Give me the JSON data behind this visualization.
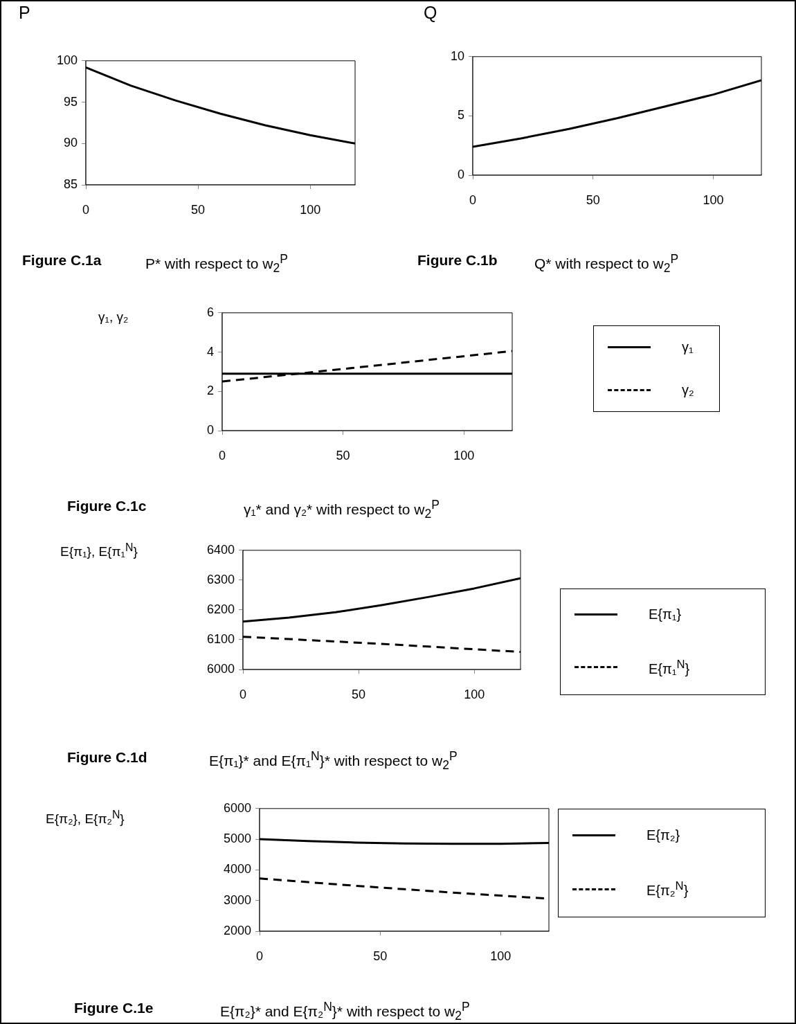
{
  "chart_data": [
    {
      "type": "line",
      "title": "Figure C.1a",
      "subtitle": "P* with respect to w$_{2}$$^{P}$",
      "ylabel": "P",
      "x": [
        0,
        20,
        40,
        60,
        80,
        100,
        120
      ],
      "xlim": [
        0,
        120
      ],
      "xticks": [
        0,
        50,
        100
      ],
      "ylim": [
        85,
        100
      ],
      "yticks": [
        85,
        90,
        95,
        100
      ],
      "series": [
        {
          "color": "#000000",
          "line_style": "solid",
          "values": [
            99.2,
            97.0,
            95.2,
            93.6,
            92.2,
            91.0,
            90.0
          ]
        }
      ]
    },
    {
      "type": "line",
      "title": "Figure C.1b",
      "subtitle": "Q* with respect to w$_{2}$$^{P}$",
      "ylabel": "Q",
      "x": [
        0,
        20,
        40,
        60,
        80,
        100,
        120
      ],
      "xlim": [
        0,
        120
      ],
      "xticks": [
        0,
        50,
        100
      ],
      "ylim": [
        0,
        10
      ],
      "yticks": [
        0,
        5,
        10
      ],
      "series": [
        {
          "color": "#000000",
          "line_style": "solid",
          "values": [
            2.4,
            3.1,
            3.9,
            4.8,
            5.8,
            6.8,
            8.0
          ]
        }
      ]
    },
    {
      "type": "line",
      "title": "Figure C.1c",
      "subtitle": "γ₁* and γ₂* with respect to w$_{2}$$^{P}$",
      "ylabel": "γ₁, γ₂",
      "x": [
        0,
        60,
        120
      ],
      "xlim": [
        0,
        120
      ],
      "xticks": [
        0,
        50,
        100
      ],
      "ylim": [
        0,
        6
      ],
      "yticks": [
        0,
        2,
        4,
        6
      ],
      "legend": "right",
      "series": [
        {
          "name": "γ₁",
          "color": "#000000",
          "line_style": "solid",
          "values": [
            2.9,
            2.9,
            2.9
          ]
        },
        {
          "name": "γ₂",
          "color": "#000000",
          "line_style": "dashed",
          "values": [
            2.5,
            3.27,
            4.05
          ]
        }
      ]
    },
    {
      "type": "line",
      "title": "Figure C.1d",
      "subtitle": "E{π₁}* and E{π₁$^{N}$}* with respect to w$_{2}$$^{P}$",
      "ylabel": "E{π₁}, E{π₁$^{N}$}",
      "x": [
        0,
        20,
        40,
        60,
        80,
        100,
        120
      ],
      "xlim": [
        0,
        120
      ],
      "xticks": [
        0,
        50,
        100
      ],
      "ylim": [
        6000,
        6400
      ],
      "yticks": [
        6000,
        6100,
        6200,
        6300,
        6400
      ],
      "legend": "right",
      "series": [
        {
          "name": "E{π₁}",
          "color": "#000000",
          "line_style": "solid",
          "values": [
            6161,
            6174,
            6192,
            6216,
            6243,
            6272,
            6306
          ]
        },
        {
          "name": "E{π₁$^{N}$}",
          "color": "#000000",
          "line_style": "dashed",
          "values": [
            6110,
            6102,
            6094,
            6086,
            6077,
            6068,
            6059
          ]
        }
      ]
    },
    {
      "type": "line",
      "title": "Figure C.1e",
      "subtitle": "E{π₂}* and E{π₂$^{N}$}* with respect to w$_{2}$$^{P}$",
      "ylabel": "E{π₂}, E{π₂$^{N}$}",
      "x": [
        0,
        20,
        40,
        60,
        80,
        100,
        120
      ],
      "xlim": [
        0,
        120
      ],
      "xticks": [
        0,
        50,
        100
      ],
      "ylim": [
        2000,
        6000
      ],
      "yticks": [
        2000,
        3000,
        4000,
        5000,
        6000
      ],
      "legend": "right",
      "series": [
        {
          "name": "E{π₂}",
          "color": "#000000",
          "line_style": "solid",
          "values": [
            5000,
            4940,
            4890,
            4860,
            4850,
            4850,
            4880
          ]
        },
        {
          "name": "E{π₂$^{N}$}",
          "color": "#000000",
          "line_style": "dashed",
          "values": [
            3720,
            3600,
            3480,
            3370,
            3260,
            3160,
            3060
          ]
        }
      ]
    }
  ]
}
